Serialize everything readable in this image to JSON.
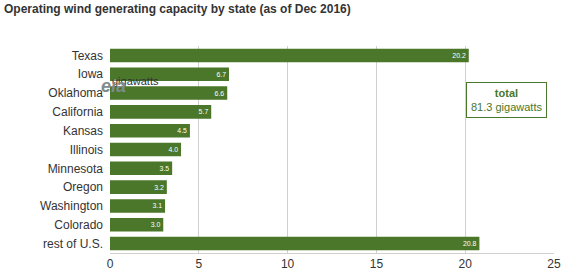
{
  "chart_data": {
    "type": "bar",
    "title": "Operating wind generating capacity by state (as of Dec 2016)",
    "subtitle": "gigawatts",
    "logo": "eia",
    "orientation": "horizontal",
    "categories": [
      "Texas",
      "Iowa",
      "Oklahoma",
      "California",
      "Kansas",
      "Illinois",
      "Minnesota",
      "Oregon",
      "Washington",
      "Colorado",
      "rest of U.S."
    ],
    "values": [
      20.2,
      6.7,
      6.6,
      5.7,
      4.5,
      4.0,
      3.5,
      3.2,
      3.1,
      3.0,
      20.8
    ],
    "value_labels": [
      "20.2",
      "6.7",
      "6.6",
      "5.7",
      "4.5",
      "4.0",
      "3.5",
      "3.2",
      "3.1",
      "3.0",
      "20.8"
    ],
    "data_labels": true,
    "color": "#4a7729",
    "xlim": [
      0,
      25
    ],
    "xticks": [
      0,
      5,
      10,
      15,
      20,
      25
    ],
    "grid": true,
    "annotations": [
      "total",
      "81.3 gigawatts"
    ]
  }
}
